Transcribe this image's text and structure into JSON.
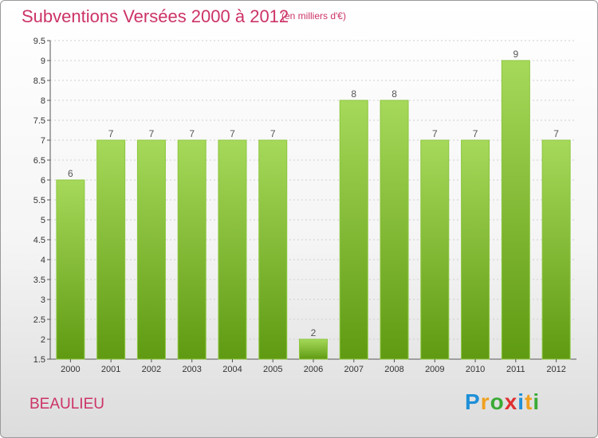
{
  "title": "Subventions Versées 2000 à 2012",
  "subtitle": "(en milliers d'€)",
  "commune": "BEAULIEU",
  "logo": {
    "letters": [
      "P",
      "r",
      "o",
      "x",
      "i",
      "t",
      "i"
    ],
    "colors": [
      "#1e90d8",
      "#f0a020",
      "#3aaa35",
      "#e03030",
      "#1e90d8",
      "#f0a020",
      "#3aaa35"
    ]
  },
  "colors": {
    "title": "#cc3366",
    "bar_top": "#a6d95a",
    "bar_bottom": "#5f9a12",
    "grid": "#cfcfcf"
  },
  "chart_data": {
    "type": "bar",
    "title": "Subventions Versées 2000 à 2012",
    "subtitle": "(en milliers d'€)",
    "categories": [
      "2000",
      "2001",
      "2002",
      "2003",
      "2004",
      "2005",
      "2006",
      "2007",
      "2008",
      "2009",
      "2010",
      "2011",
      "2012"
    ],
    "values": [
      6,
      7,
      7,
      7,
      7,
      7,
      2,
      8,
      8,
      7,
      7,
      9,
      7
    ],
    "value_labels": [
      "6",
      "7",
      "7",
      "7",
      "7",
      "7",
      "2",
      "8",
      "8",
      "7",
      "7",
      "9",
      "7"
    ],
    "ylim": [
      1.5,
      9.5
    ],
    "yticks": [
      1.5,
      2,
      2.5,
      3,
      3.5,
      4,
      4.5,
      5,
      5.5,
      6,
      6.5,
      7,
      7.5,
      8,
      8.5,
      9,
      9.5
    ],
    "ytick_labels": [
      "1.5",
      "2",
      "2.5",
      "3",
      "3.5",
      "4",
      "4.5",
      "5",
      "5.5",
      "6",
      "6.5",
      "7",
      "7.5",
      "8",
      "8.5",
      "9",
      "9.5"
    ],
    "grid": true
  }
}
